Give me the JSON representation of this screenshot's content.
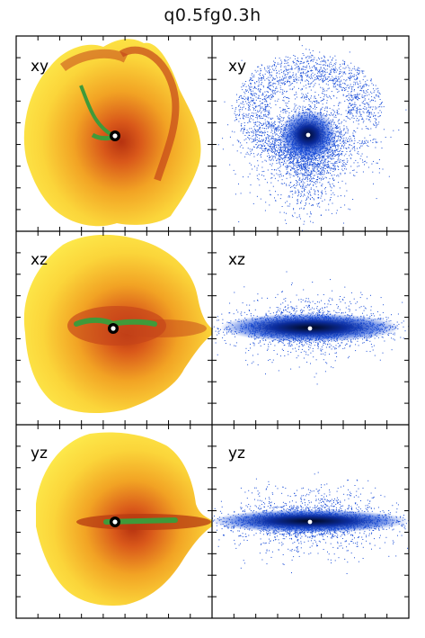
{
  "title": "q0.5fg0.3h",
  "panels": [
    {
      "label": "xy",
      "kind": "gas"
    },
    {
      "label": "xy",
      "kind": "stars"
    },
    {
      "label": "xz",
      "kind": "gas"
    },
    {
      "label": "xz",
      "kind": "stars"
    },
    {
      "label": "yz",
      "kind": "gas"
    },
    {
      "label": "yz",
      "kind": "stars"
    }
  ],
  "colors": {
    "gas_outer": "#fde84a",
    "gas_mid": "#f6b020",
    "gas_inner": "#d2521a",
    "gas_core": "#a12a0c",
    "gas_dense": "#3f9a3a",
    "stars": "#1c4fd8",
    "stars_core": "#001040",
    "nucleus_ring": "#000000",
    "nucleus_dot": "#ffffff",
    "frame": "#000000"
  }
}
